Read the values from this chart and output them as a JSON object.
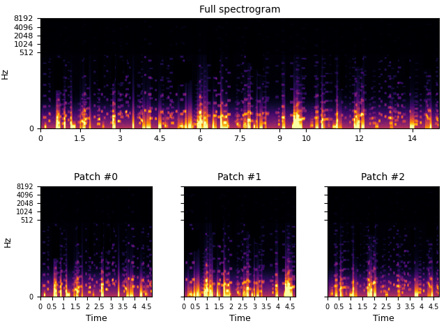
{
  "title_full": "Full spectrogram",
  "patch_titles": [
    "Patch #0",
    "Patch #1",
    "Patch #2"
  ],
  "xlabel": "Time",
  "ylabel": "Hz",
  "yticks": [
    0,
    512,
    1024,
    2048,
    4096,
    8192
  ],
  "ytick_labels": [
    "0",
    "512",
    "1024",
    "2048",
    "4096",
    "8192"
  ],
  "full_xticks": [
    0,
    1.5,
    3,
    4.5,
    6,
    7.5,
    9,
    10,
    12,
    14
  ],
  "patch_xticks": [
    0.0,
    0.5,
    1.0,
    1.5,
    2.0,
    2.5,
    3.0,
    3.5,
    4.0,
    4.5
  ],
  "patch_xtick_labels": [
    "0",
    "0.5",
    "1",
    "1.5",
    "2",
    "2.5",
    "3",
    "3.5",
    "4",
    "4.5"
  ],
  "full_time_max": 15.0,
  "patch_time_max": 4.75,
  "freq_max": 8192,
  "n_time_full": 600,
  "n_freq": 256,
  "colormap": "inferno",
  "seed": 42,
  "figsize": [
    6.4,
    4.8
  ],
  "dpi": 100
}
